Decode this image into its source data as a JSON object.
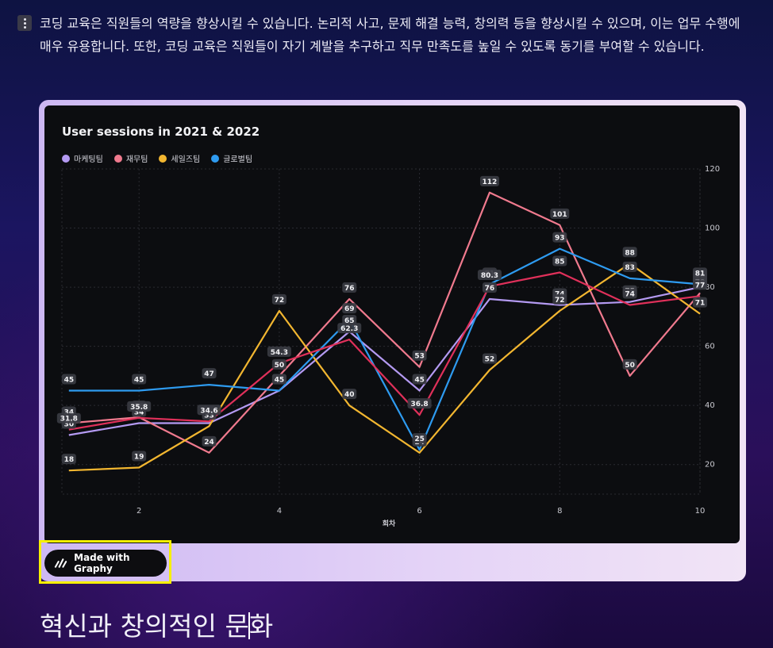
{
  "paragraph": "코딩 교육은 직원들의 역량을 향상시킬 수 있습니다. 논리적 사고, 문제 해결 능력, 창의력 등을 향상시킬 수 있으며, 이는 업무 수행에 매우 유용합니다. 또한, 코딩 교육은 직원들이 자기 계발을 추구하고 직무 만족도를 높일 수 있도록 동기를 부여할 수 있습니다.",
  "badge_label": "Made with Graphy",
  "heading": {
    "before": "혁신과 창의적인 문",
    "after": "화"
  },
  "chart_data": {
    "type": "line",
    "title": "User sessions in 2021 & 2022",
    "xlabel": "회차",
    "ylabel": "",
    "x": [
      1,
      2,
      3,
      4,
      5,
      6,
      7,
      8,
      9,
      10
    ],
    "xticks": [
      2,
      4,
      6,
      8,
      10
    ],
    "yticks": [
      20,
      40,
      60,
      80,
      100,
      120
    ],
    "xlim": [
      0.9,
      10
    ],
    "ylim": [
      10,
      120
    ],
    "grid": true,
    "legend_position": "top-left",
    "series": [
      {
        "name": "마케팅팀",
        "color": "#b49af2",
        "values": [
          30,
          34,
          34,
          45,
          65,
          45,
          76,
          74,
          75,
          80
        ]
      },
      {
        "name": "재무팀",
        "color": "#f07a8e",
        "values": [
          34,
          36,
          24,
          50,
          76,
          53,
          112,
          101,
          50,
          78
        ]
      },
      {
        "name": "세일즈팀",
        "color": "#f2b630",
        "values": [
          18,
          19,
          33,
          72,
          40,
          24,
          52,
          72,
          88,
          71
        ]
      },
      {
        "name": "글로벌팀",
        "color": "#2e9bf0",
        "values": [
          45,
          45,
          47,
          45,
          69,
          25,
          81,
          93,
          83,
          81
        ]
      },
      {
        "name": "",
        "color": "#e0305a",
        "values": [
          31.8,
          35.8,
          34.6,
          54.3,
          62.3,
          36.8,
          80.3,
          85,
          74,
          77
        ]
      }
    ]
  }
}
